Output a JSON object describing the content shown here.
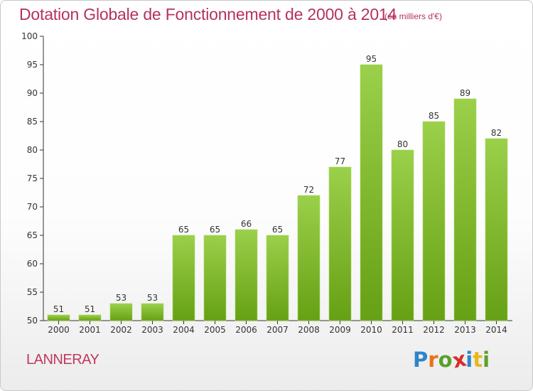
{
  "title": "Dotation Globale de Fonctionnement de 2000 à 2014",
  "subtitle": "(en milliers d'€)",
  "place": "LANNERAY",
  "logo": {
    "letters": [
      "P",
      "r",
      "o",
      "x",
      "i",
      "t",
      "i"
    ],
    "colors": [
      "#2e86c8",
      "#e8731a",
      "#5aa02c",
      "#d92b2b",
      "#2e86c8",
      "#e8b81a",
      "#5aa02c"
    ]
  },
  "chart_data": {
    "type": "bar",
    "categories": [
      "2000",
      "2001",
      "2002",
      "2003",
      "2004",
      "2005",
      "2006",
      "2007",
      "2008",
      "2009",
      "2010",
      "2011",
      "2012",
      "2013",
      "2014"
    ],
    "values": [
      51,
      51,
      53,
      53,
      65,
      65,
      66,
      65,
      72,
      77,
      95,
      80,
      85,
      89,
      82
    ],
    "title": "Dotation Globale de Fonctionnement de 2000 à 2014",
    "subtitle": "(en milliers d'€)",
    "xlabel": "",
    "ylabel": "",
    "ylim": [
      50,
      100
    ],
    "yticks": [
      50,
      55,
      60,
      65,
      70,
      75,
      80,
      85,
      90,
      95,
      100
    ],
    "grid": false,
    "legend": "none",
    "bar_color_top": "#9bd04a",
    "bar_color_bottom": "#66a014"
  }
}
